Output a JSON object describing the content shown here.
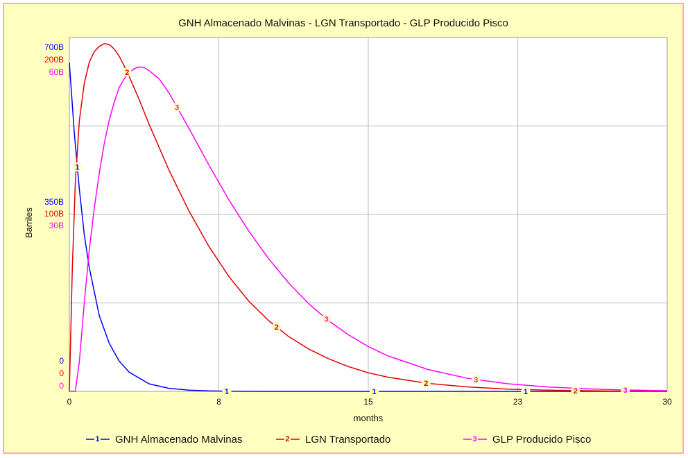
{
  "chart_data": {
    "type": "line",
    "title": "GNH Almacenado Malvinas - LGN Transportado - GLP Producido Pisco",
    "xlabel": "months",
    "ylabel": "Barriles",
    "xlim": [
      0,
      30
    ],
    "x_ticks": [
      {
        "value": 0,
        "label": "0"
      },
      {
        "value": 7.5,
        "label": "8"
      },
      {
        "value": 15,
        "label": "15"
      },
      {
        "value": 22.5,
        "label": "23"
      },
      {
        "value": 30,
        "label": "30"
      }
    ],
    "grid": true,
    "legend_position": "bottom",
    "series": [
      {
        "name": "GNH Almacenado Malvinas",
        "marker": "1",
        "color": "#0000ff",
        "ylim": [
          0,
          700
        ],
        "y_ticks": [
          "0",
          "350B",
          "700B"
        ],
        "x": [
          0,
          0.25,
          0.5,
          0.75,
          1,
          1.5,
          2,
          2.5,
          3,
          4,
          5,
          6,
          7,
          8,
          9,
          10,
          12,
          14,
          16,
          18,
          20,
          23,
          26,
          30
        ],
        "values": [
          650,
          510,
          400,
          310,
          245,
          150,
          95,
          60,
          38,
          15,
          6,
          2.5,
          1,
          0.4,
          0.16,
          0.06,
          0.01,
          0,
          0,
          0,
          0,
          0,
          0,
          0
        ]
      },
      {
        "name": "LGN Transportado",
        "marker": "2",
        "color": "#e00000",
        "ylim": [
          0,
          200
        ],
        "y_ticks": [
          "0",
          "100B",
          "200B"
        ],
        "x": [
          0,
          0.15,
          0.3,
          0.5,
          0.75,
          1,
          1.25,
          1.5,
          1.75,
          2,
          2.25,
          2.5,
          2.75,
          3,
          3.5,
          4,
          5,
          6,
          7,
          8,
          9,
          10,
          11,
          12,
          13,
          14,
          15,
          16,
          18,
          20,
          22,
          24,
          26,
          28,
          30
        ],
        "values": [
          0,
          70,
          118,
          153,
          174,
          186,
          192,
          195,
          196.5,
          196,
          193.5,
          189.5,
          184,
          178,
          165,
          151,
          125,
          102,
          82,
          65,
          51,
          40,
          31,
          24,
          18.5,
          14,
          10.5,
          8,
          4.5,
          2.5,
          1.3,
          0.7,
          0.35,
          0.15,
          0.05
        ]
      },
      {
        "name": "GLP Producido Pisco",
        "marker": "3",
        "color": "#ff00ff",
        "ylim": [
          0,
          60
        ],
        "y_ticks": [
          "0",
          "30B",
          "60B"
        ],
        "x": [
          0,
          0.3,
          0.5,
          0.75,
          1,
          1.25,
          1.5,
          1.75,
          2,
          2.25,
          2.5,
          2.75,
          3,
          3.25,
          3.5,
          3.75,
          4,
          4.5,
          5,
          6,
          7,
          8,
          9,
          10,
          11,
          12,
          13,
          14,
          15,
          16,
          18,
          20,
          22,
          24,
          26,
          28,
          30
        ],
        "values": [
          0,
          0,
          5,
          15,
          24,
          31,
          37,
          42,
          46,
          49,
          51.5,
          53,
          54,
          54.7,
          55,
          54.9,
          54.4,
          53,
          50.6,
          44.6,
          38.4,
          32.5,
          27.2,
          22.5,
          18.4,
          14.9,
          12,
          9.6,
          7.6,
          6,
          3.7,
          2.2,
          1.3,
          0.75,
          0.42,
          0.23,
          0.12
        ]
      }
    ],
    "marker_positions": {
      "1": [
        0.4,
        7.9,
        15.3,
        22.9
      ],
      "2": [
        2.9,
        10.4,
        17.9,
        25.4
      ],
      "3": [
        5.4,
        12.9,
        20.4,
        27.9
      ]
    }
  }
}
